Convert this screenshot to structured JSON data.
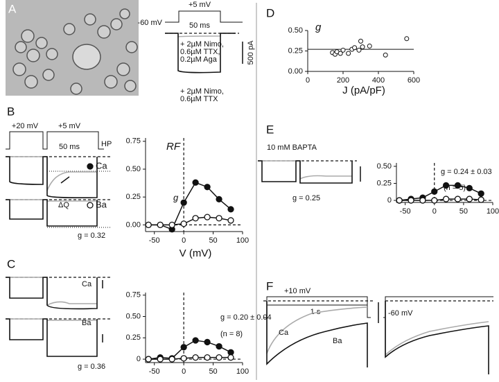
{
  "panel_labels": [
    "A",
    "B",
    "C",
    "D",
    "E",
    "F"
  ],
  "panel_a": {
    "step": "+5 mV",
    "holding": "-60 mV",
    "duration": "50 ms",
    "scale": "500 pA",
    "condition_1": [
      "+ 2µM Nimo,",
      "0.6µM TTX,",
      "0.2µM Aga"
    ],
    "condition_2": [
      "+ 2µM Nimo,",
      "0.6µM TTX"
    ]
  },
  "panel_b": {
    "prepulse": "+20 mV",
    "step": "+5 mV",
    "duration": "50 ms",
    "holding": "HP",
    "charge": "ΔQ",
    "g_label": "g = 0.32"
  },
  "panel_c": {
    "ca": "Ca",
    "ba": "Ba",
    "g_label": "g = 0.36"
  },
  "panel_e": {
    "condition": "10 mM BAPTA",
    "g_label": "g = 0.25"
  },
  "panel_f": {
    "step": "+10 mV",
    "duration": "1 s",
    "ca": "Ca",
    "ba": "Ba",
    "holding": "-60 mV"
  },
  "chart_data": [
    {
      "type": "scatter",
      "title": "g",
      "x_label": "J (pA/pF)",
      "x": [
        140,
        155,
        165,
        185,
        200,
        230,
        250,
        265,
        290,
        300,
        310,
        350,
        440,
        560
      ],
      "values": [
        0.23,
        0.21,
        0.24,
        0.22,
        0.26,
        0.22,
        0.27,
        0.29,
        0.26,
        0.37,
        0.3,
        0.31,
        0.2,
        0.4
      ],
      "color": "#111111",
      "fit_value": 0.27,
      "xlim": [
        0,
        600
      ],
      "xticks": [
        0,
        200,
        400,
        600
      ],
      "ylim": [
        0,
        0.5
      ],
      "yticks": [
        {
          "value": 0,
          "label": "0.00"
        },
        0.25,
        {
          "value": 0.5,
          "label": "0.50"
        }
      ]
    },
    {
      "type": "line",
      "title": "RF",
      "x_label": "V (mV)",
      "legend": "left",
      "annotation": "g",
      "x": [
        -60,
        -40,
        -20,
        0,
        20,
        40,
        60,
        80
      ],
      "series": [
        {
          "name": "Ca",
          "color": "#111111",
          "marker": "filled",
          "values": [
            0,
            0,
            -0.04,
            0.2,
            0.38,
            0.34,
            0.23,
            0.14
          ]
        },
        {
          "name": "Ba",
          "color": "#111111",
          "marker": "open",
          "values": [
            0,
            0,
            0,
            0.01,
            0.06,
            0.07,
            0.06,
            0.04
          ]
        }
      ],
      "xlim": [
        -65,
        100
      ],
      "xticks": [
        -50,
        0,
        50,
        100
      ],
      "ylim": [
        -0.06,
        0.78
      ],
      "yticks": [
        {
          "value": 0,
          "label": "0.00"
        },
        0.25,
        {
          "value": 0.5,
          "label": "0.50"
        },
        0.75
      ]
    },
    {
      "type": "line",
      "annotation": [
        "g = 0.20 ± 0.04",
        "(n = 8)"
      ],
      "x": [
        -60,
        -40,
        -20,
        0,
        20,
        40,
        60,
        80
      ],
      "series": [
        {
          "color": "#111111",
          "marker": "filled",
          "values": [
            0,
            0.02,
            0.01,
            0.14,
            0.22,
            0.2,
            0.15,
            0.08
          ]
        },
        {
          "color": "#111111",
          "marker": "open",
          "values": [
            0,
            0,
            0,
            0.01,
            0.02,
            0.02,
            0.02,
            0.02
          ]
        }
      ],
      "xlim": [
        -65,
        100
      ],
      "xticks": [
        -50,
        0,
        50,
        100
      ],
      "ylim": [
        -0.04,
        0.78
      ],
      "yticks": [
        0,
        0.25,
        {
          "value": 0.5,
          "label": "0.50"
        },
        0.75
      ]
    },
    {
      "type": "line",
      "annotation": [
        "g = 0.24 ± 0.03",
        "(n = 5)"
      ],
      "x": [
        -60,
        -40,
        -20,
        0,
        20,
        40,
        60,
        80
      ],
      "series": [
        {
          "color": "#111111",
          "marker": "filled",
          "values": [
            0,
            0.02,
            0.04,
            0.13,
            0.22,
            0.22,
            0.18,
            0.1
          ]
        },
        {
          "color": "#111111",
          "marker": "open",
          "values": [
            0,
            0,
            0,
            0,
            0.02,
            0.02,
            0.02,
            0.01
          ]
        }
      ],
      "xlim": [
        -65,
        100
      ],
      "xticks": [
        -50,
        0,
        50,
        100
      ],
      "ylim": [
        -0.03,
        0.55
      ],
      "yticks": [
        0,
        0.25,
        {
          "value": 0.5,
          "label": "0.50"
        }
      ]
    }
  ]
}
